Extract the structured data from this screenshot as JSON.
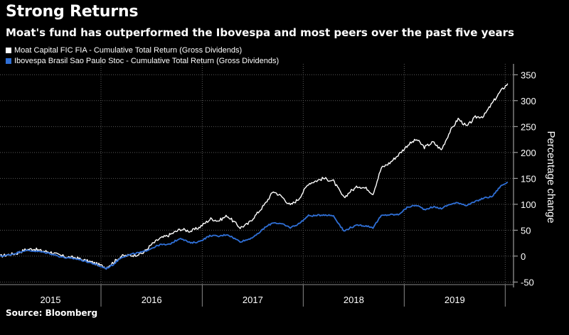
{
  "title": "Strong Returns",
  "subtitle": "Moat's fund has outperformed the Ibovespa and most peers over the past five years",
  "source": "Source: Bloomberg",
  "chart_data": {
    "type": "line",
    "ylabel": "Percentage change",
    "ylim": [
      -55,
      360
    ],
    "yticks": [
      -50,
      0,
      50,
      100,
      150,
      200,
      250,
      300,
      350
    ],
    "xlim": [
      "2015-01-01",
      "2020-01-31"
    ],
    "year_labels": [
      "2015",
      "2016",
      "2017",
      "2018",
      "2019"
    ],
    "grid": true,
    "legend": "top-left",
    "series": [
      {
        "name": "Moat Capital FIC FIA - Cumulative Total Return (Gross Dividends)",
        "color": "#ffffff",
        "points": [
          [
            "2015-01-02",
            0
          ],
          [
            "2015-02-01",
            3
          ],
          [
            "2015-03-01",
            5
          ],
          [
            "2015-04-01",
            12
          ],
          [
            "2015-05-01",
            14
          ],
          [
            "2015-06-01",
            10
          ],
          [
            "2015-07-01",
            8
          ],
          [
            "2015-08-01",
            2
          ],
          [
            "2015-09-01",
            -2
          ],
          [
            "2015-10-01",
            -3
          ],
          [
            "2015-11-01",
            -8
          ],
          [
            "2015-12-01",
            -12
          ],
          [
            "2016-01-20",
            -22
          ],
          [
            "2016-02-15",
            -12
          ],
          [
            "2016-03-15",
            0
          ],
          [
            "2016-05-01",
            2
          ],
          [
            "2016-06-01",
            6
          ],
          [
            "2016-07-01",
            22
          ],
          [
            "2016-08-01",
            34
          ],
          [
            "2016-09-01",
            40
          ],
          [
            "2016-10-15",
            52
          ],
          [
            "2016-11-20",
            48
          ],
          [
            "2016-12-20",
            55
          ],
          [
            "2017-02-01",
            72
          ],
          [
            "2017-03-01",
            68
          ],
          [
            "2017-04-01",
            78
          ],
          [
            "2017-05-18",
            55
          ],
          [
            "2017-06-15",
            62
          ],
          [
            "2017-07-15",
            80
          ],
          [
            "2017-08-15",
            100
          ],
          [
            "2017-09-15",
            125
          ],
          [
            "2017-10-15",
            115
          ],
          [
            "2017-11-15",
            98
          ],
          [
            "2017-12-15",
            110
          ],
          [
            "2018-01-20",
            140
          ],
          [
            "2018-02-15",
            145
          ],
          [
            "2018-03-15",
            150
          ],
          [
            "2018-04-20",
            145
          ],
          [
            "2018-05-28",
            112
          ],
          [
            "2018-06-20",
            125
          ],
          [
            "2018-07-20",
            135
          ],
          [
            "2018-08-20",
            130
          ],
          [
            "2018-09-10",
            120
          ],
          [
            "2018-10-10",
            170
          ],
          [
            "2018-11-10",
            180
          ],
          [
            "2018-12-10",
            195
          ],
          [
            "2019-01-15",
            215
          ],
          [
            "2019-02-15",
            225
          ],
          [
            "2019-03-15",
            210
          ],
          [
            "2019-04-15",
            220
          ],
          [
            "2019-05-15",
            205
          ],
          [
            "2019-06-15",
            240
          ],
          [
            "2019-07-15",
            265
          ],
          [
            "2019-08-15",
            250
          ],
          [
            "2019-09-15",
            268
          ],
          [
            "2019-10-15",
            270
          ],
          [
            "2019-11-15",
            295
          ],
          [
            "2019-12-15",
            318
          ],
          [
            "2020-01-10",
            333
          ]
        ]
      },
      {
        "name": "Ibovespa Brasil Sao Paulo Stoc - Cumulative Total Return (Gross Dividends)",
        "color": "#2f6fd6",
        "points": [
          [
            "2015-01-02",
            0
          ],
          [
            "2015-02-01",
            2
          ],
          [
            "2015-03-01",
            6
          ],
          [
            "2015-04-01",
            11
          ],
          [
            "2015-05-01",
            10
          ],
          [
            "2015-06-01",
            8
          ],
          [
            "2015-07-01",
            5
          ],
          [
            "2015-08-01",
            0
          ],
          [
            "2015-09-01",
            -4
          ],
          [
            "2015-10-01",
            -5
          ],
          [
            "2015-11-01",
            -9
          ],
          [
            "2015-12-01",
            -14
          ],
          [
            "2016-01-20",
            -24
          ],
          [
            "2016-02-15",
            -16
          ],
          [
            "2016-03-15",
            -2
          ],
          [
            "2016-05-01",
            5
          ],
          [
            "2016-06-01",
            8
          ],
          [
            "2016-07-01",
            15
          ],
          [
            "2016-08-01",
            22
          ],
          [
            "2016-09-01",
            22
          ],
          [
            "2016-10-15",
            35
          ],
          [
            "2016-11-20",
            25
          ],
          [
            "2016-12-20",
            28
          ],
          [
            "2017-02-01",
            40
          ],
          [
            "2017-03-01",
            38
          ],
          [
            "2017-04-01",
            42
          ],
          [
            "2017-05-18",
            28
          ],
          [
            "2017-06-15",
            32
          ],
          [
            "2017-07-15",
            40
          ],
          [
            "2017-08-15",
            55
          ],
          [
            "2017-09-15",
            65
          ],
          [
            "2017-10-15",
            62
          ],
          [
            "2017-11-15",
            55
          ],
          [
            "2017-12-15",
            62
          ],
          [
            "2018-01-20",
            78
          ],
          [
            "2018-02-15",
            78
          ],
          [
            "2018-03-15",
            80
          ],
          [
            "2018-04-20",
            78
          ],
          [
            "2018-05-28",
            48
          ],
          [
            "2018-06-20",
            55
          ],
          [
            "2018-07-20",
            60
          ],
          [
            "2018-08-20",
            58
          ],
          [
            "2018-09-10",
            55
          ],
          [
            "2018-10-10",
            78
          ],
          [
            "2018-11-10",
            80
          ],
          [
            "2018-12-10",
            80
          ],
          [
            "2019-01-15",
            95
          ],
          [
            "2019-02-15",
            98
          ],
          [
            "2019-03-15",
            90
          ],
          [
            "2019-04-15",
            95
          ],
          [
            "2019-05-15",
            92
          ],
          [
            "2019-06-15",
            100
          ],
          [
            "2019-07-15",
            103
          ],
          [
            "2019-08-15",
            98
          ],
          [
            "2019-09-15",
            105
          ],
          [
            "2019-10-15",
            112
          ],
          [
            "2019-11-15",
            115
          ],
          [
            "2019-12-15",
            135
          ],
          [
            "2020-01-10",
            143
          ]
        ]
      }
    ]
  }
}
